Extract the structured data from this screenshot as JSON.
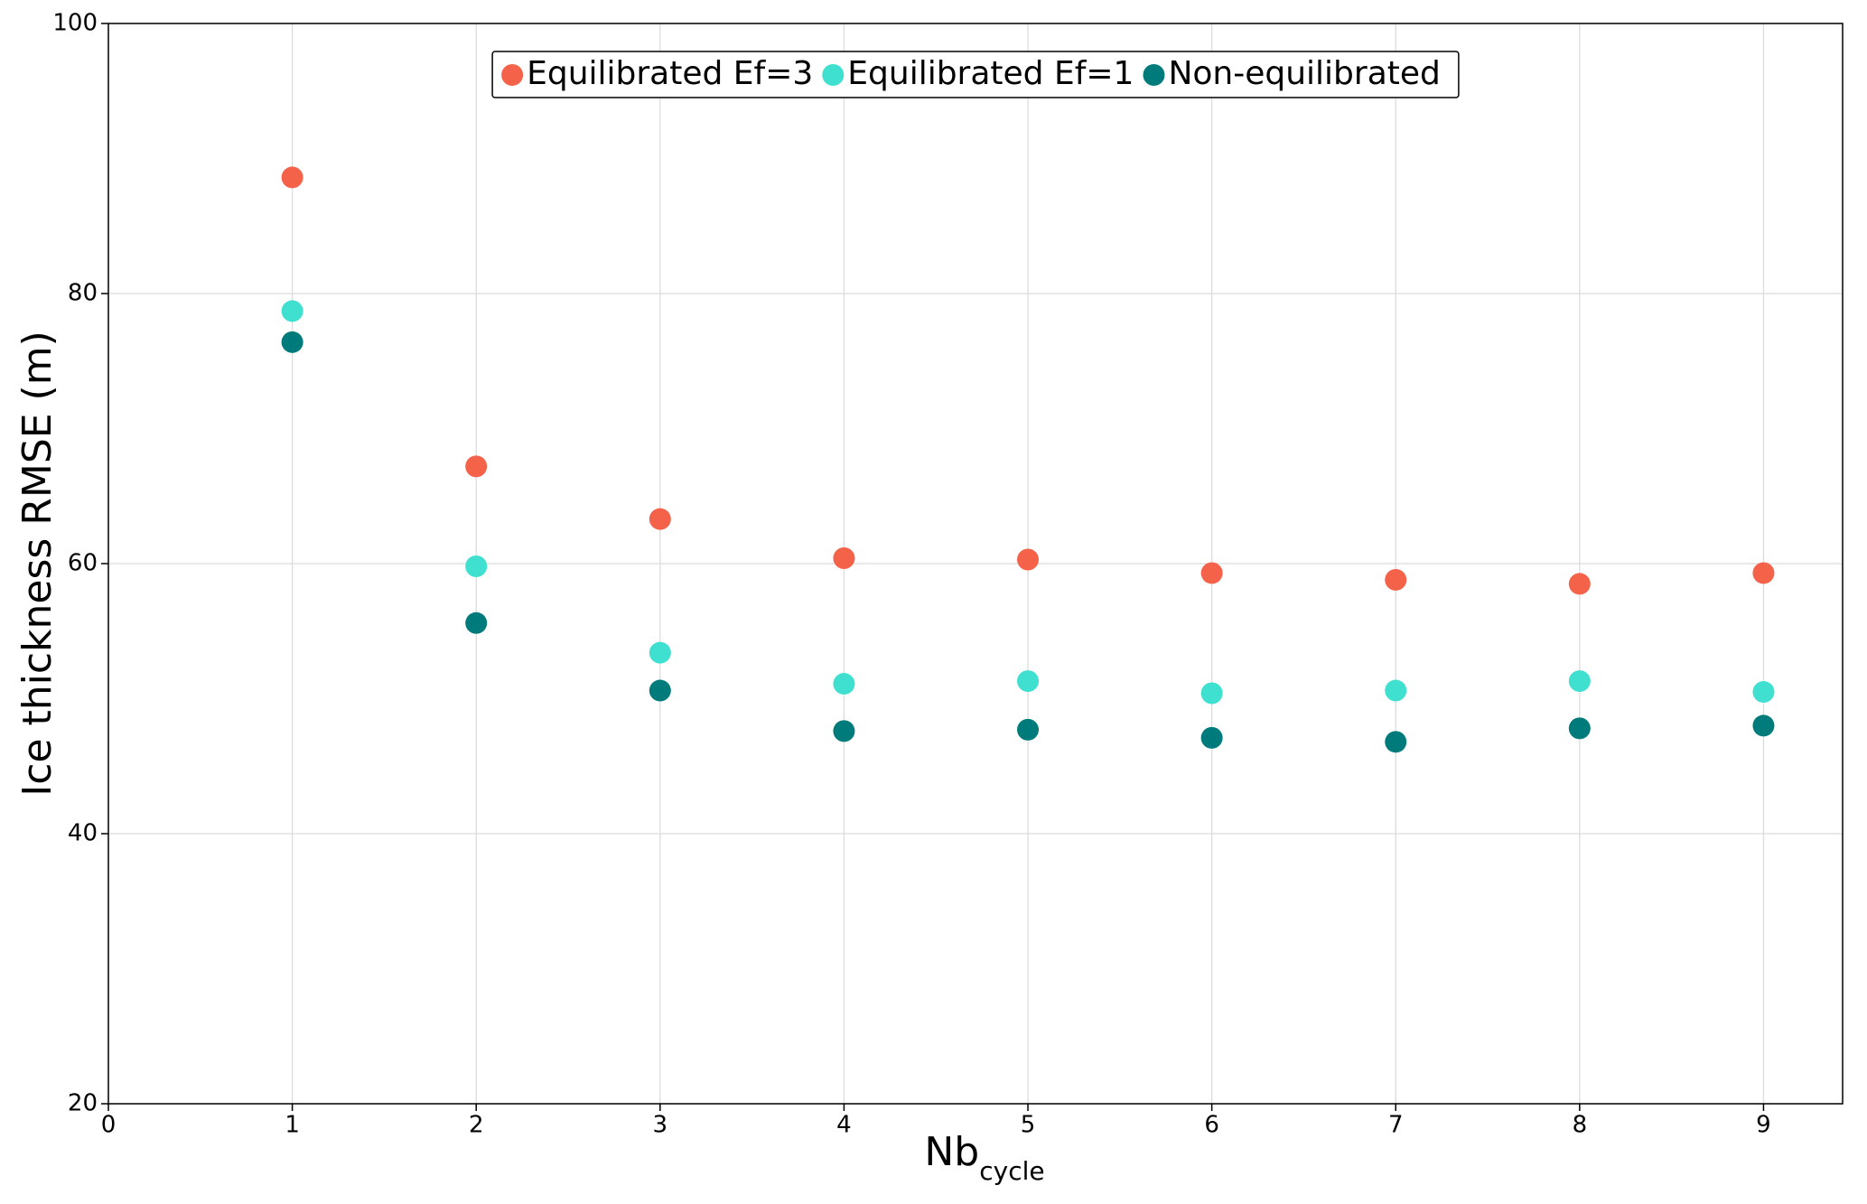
{
  "chart_data": {
    "type": "scatter",
    "ylabel": "Ice thickness RMSE (m)",
    "xlabel": "Nb",
    "xlabel_sub": "cycle",
    "x": [
      1,
      2,
      3,
      4,
      5,
      6,
      7,
      8,
      9
    ],
    "series": [
      {
        "name": "Equilibrated Ef=3",
        "color": "#f4624a",
        "values": [
          88.6,
          67.2,
          63.3,
          60.4,
          60.3,
          59.3,
          58.8,
          58.5,
          59.3
        ]
      },
      {
        "name": "Equilibrated Ef=1",
        "color": "#40e0d0",
        "values": [
          78.7,
          59.8,
          53.4,
          51.1,
          51.3,
          50.4,
          50.6,
          51.3,
          50.5
        ]
      },
      {
        "name": "Non-equilibrated",
        "color": "#007b7b",
        "values": [
          76.4,
          55.6,
          50.6,
          47.6,
          47.7,
          47.1,
          46.8,
          47.8,
          48.0
        ]
      }
    ],
    "xlim": [
      0,
      9.43
    ],
    "ylim": [
      20,
      100
    ],
    "xticks": [
      0,
      1,
      2,
      3,
      4,
      5,
      6,
      7,
      8,
      9
    ],
    "yticks": [
      20,
      40,
      60,
      80,
      100
    ],
    "grid": true,
    "legend": "upper center"
  }
}
